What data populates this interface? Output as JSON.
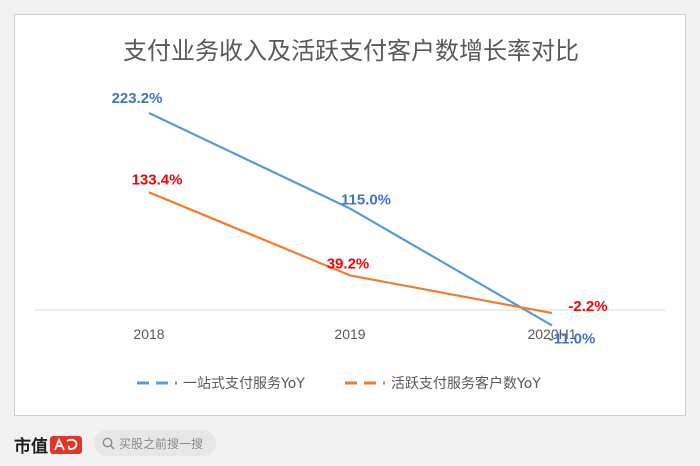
{
  "chart_data": {
    "type": "line",
    "title": "支付业务收入及活跃支付客户数增长率对比",
    "categories": [
      "2018",
      "2019",
      "2020H1"
    ],
    "series": [
      {
        "name": "一站式支付服务YoY",
        "color": "#5b9bd5",
        "label_color": "#4472c4",
        "values": [
          223.2,
          115.0,
          -11.0
        ],
        "labels": [
          "223.2%",
          "115.0%",
          "-11.0%"
        ]
      },
      {
        "name": "活跃支付服务客户数YoY",
        "color": "#ed7d31",
        "label_color": "#ff0000",
        "values": [
          133.4,
          39.2,
          -2.2
        ],
        "labels": [
          "133.4%",
          "39.2%",
          "-2.2%"
        ]
      }
    ],
    "xlabel": "",
    "ylabel": "",
    "ylim": [
      -11,
      223.2
    ],
    "grid": false,
    "legend": "bottom"
  },
  "footer": {
    "brand": "市值",
    "search_placeholder": "买股之前搜一搜"
  }
}
